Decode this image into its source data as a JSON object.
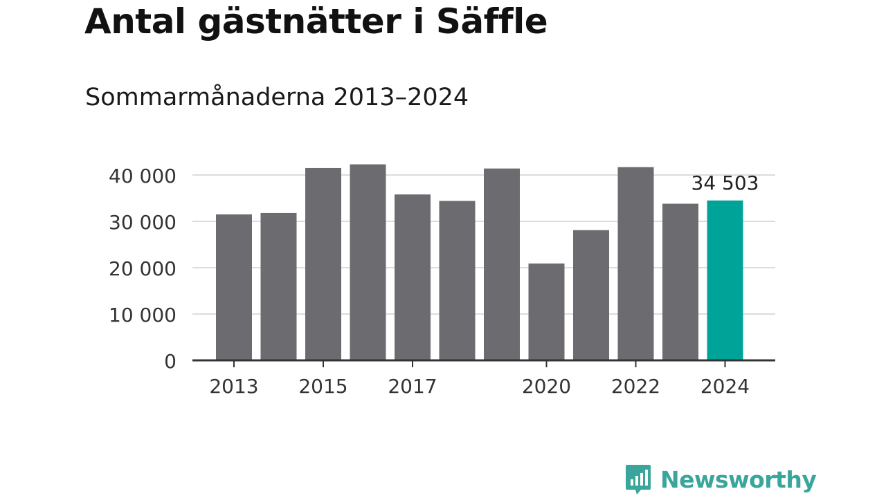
{
  "header": {
    "title": "Antal gästnätter i Säffle",
    "subtitle": "Sommarmånaderna 2013–2024"
  },
  "brand": {
    "name": "Newsworthy",
    "icon": "newsworthy-logo-icon",
    "color": "#3aa69b"
  },
  "chart_data": {
    "type": "bar",
    "title": "Antal gästnätter i Säffle",
    "subtitle": "Sommarmånaderna 2013–2024",
    "categories": [
      "2013",
      "2014",
      "2015",
      "2016",
      "2017",
      "2018",
      "2019",
      "2020",
      "2021",
      "2022",
      "2023",
      "2024"
    ],
    "values": [
      31500,
      31800,
      41500,
      42300,
      35800,
      34400,
      41400,
      20900,
      28100,
      41700,
      33800,
      34503
    ],
    "x_tick_labels": [
      "2013",
      "",
      "2015",
      "",
      "2017",
      "",
      "",
      "2020",
      "",
      "2022",
      "",
      "2024"
    ],
    "y_ticks": [
      0,
      10000,
      20000,
      30000,
      40000
    ],
    "y_tick_labels": [
      "0",
      "10 000",
      "20 000",
      "30 000",
      "40 000"
    ],
    "ylim": [
      0,
      40000
    ],
    "grid": true,
    "bar_color": "#6c6b70",
    "highlight_color": "#00a398",
    "highlight_index": 11,
    "annotation": {
      "index": 11,
      "text": "34 503"
    }
  }
}
